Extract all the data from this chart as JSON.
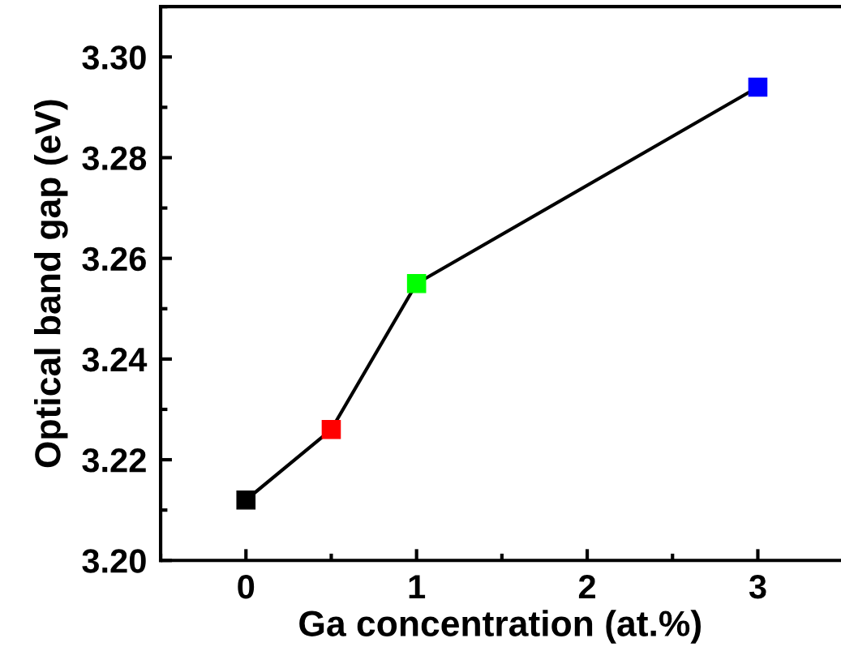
{
  "chart_data": {
    "type": "line",
    "xlabel": "Ga concentration (at.%)",
    "ylabel": "Optical band gap (eV)",
    "x": [
      0,
      0.5,
      1,
      3
    ],
    "series": [
      {
        "color": "#000000",
        "colors": [
          "#000000",
          "#ff0000",
          "#00ff00",
          "#0000ff"
        ],
        "values": [
          3.212,
          3.226,
          3.255,
          3.294
        ]
      }
    ],
    "marker": "square",
    "line_style": "solid",
    "xlim": [
      -0.5,
      3.48
    ],
    "xticks": [
      0,
      1,
      2,
      3
    ],
    "ylim": [
      3.2,
      3.31
    ],
    "yticks": [
      {
        "value": 3.2,
        "label": "3.20"
      },
      {
        "value": 3.22,
        "label": "3.22"
      },
      {
        "value": 3.24,
        "label": "3.24"
      },
      {
        "value": 3.26,
        "label": "3.26"
      },
      {
        "value": 3.28,
        "label": "3.28"
      },
      {
        "value": 3.3,
        "label": "3.30"
      }
    ],
    "grid": false,
    "legend": false
  }
}
